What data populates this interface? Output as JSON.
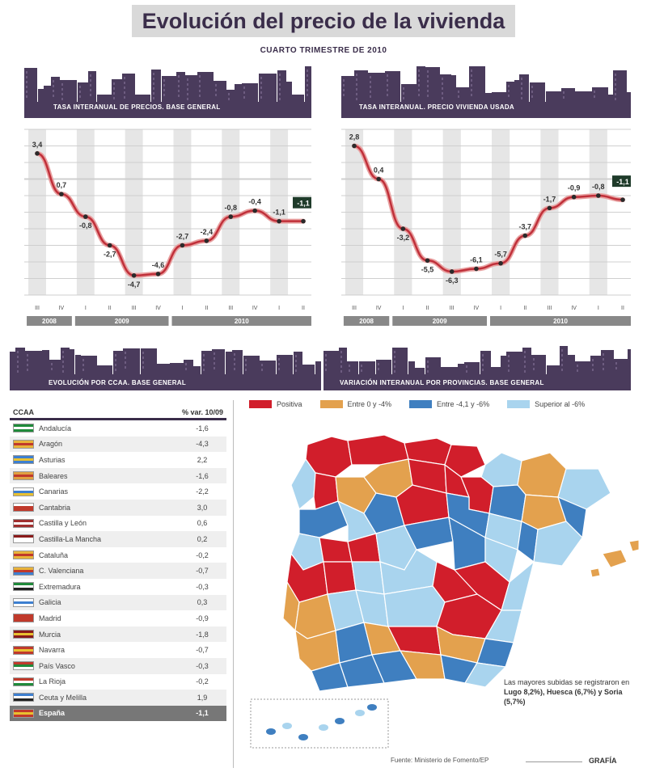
{
  "header": {
    "title": "Evolución del precio de la vivienda",
    "subtitle": "CUARTO TRIMESTRE DE 2010"
  },
  "colors": {
    "purple": "#4a3b5c",
    "red": "#d11e2b",
    "orange": "#e3a14e",
    "blue": "#3f7fc0",
    "light_blue": "#a9d4ee",
    "dark_green": "#1f3b2a"
  },
  "banners": {
    "chart1": "TASA INTERANUAL DE PRECIOS. BASE GENERAL",
    "chart2": "TASA INTERANUAL. PRECIO VIVIENDA USADA",
    "table": "EVOLUCIÓN POR CCAA. BASE GENERAL",
    "map": "VARIACIÓN INTERANUAL POR PROVINCIAS. BASE GENERAL"
  },
  "chart_data": [
    {
      "type": "line",
      "title": "TASA INTERANUAL DE PRECIOS. BASE GENERAL",
      "x": [
        "III",
        "IV",
        "I",
        "II",
        "III",
        "IV",
        "I",
        "II",
        "III",
        "IV",
        "I",
        "II"
      ],
      "years": [
        "2008",
        "2009",
        "2010"
      ],
      "values": [
        3.4,
        0.7,
        -0.8,
        -2.7,
        -4.7,
        -4.6,
        -2.7,
        -2.4,
        -0.8,
        -0.4,
        -1.1,
        -1.1
      ],
      "labels": [
        "3,4",
        "0,7",
        "-0,8",
        "-2,7",
        "-4,7",
        "-4,6",
        "-2,7",
        "-2,4",
        "-0,8",
        "-0,4",
        "-1,1",
        "-1,1"
      ],
      "highlight_label": "-1,1",
      "ylim": [
        -6,
        5
      ]
    },
    {
      "type": "line",
      "title": "TASA INTERANUAL. PRECIO VIVIENDA USADA",
      "x": [
        "III",
        "IV",
        "I",
        "II",
        "III",
        "IV",
        "I",
        "II",
        "III",
        "IV",
        "I",
        "II"
      ],
      "years": [
        "2008",
        "2009",
        "2010"
      ],
      "values": [
        2.8,
        0.4,
        -3.2,
        -5.5,
        -6.3,
        -6.1,
        -5.7,
        -3.7,
        -1.7,
        -0.9,
        -0.8,
        -1.1
      ],
      "labels": [
        "2,8",
        "0,4",
        "-3,2",
        "-5,5",
        "-6,3",
        "-6,1",
        "-5,7",
        "-3,7",
        "-1,7",
        "-0,9",
        "-0,8",
        "-1,1"
      ],
      "highlight_label": "-1,1",
      "ylim": [
        -8,
        4
      ]
    }
  ],
  "table": {
    "col_name": "CCAA",
    "col_value": "% var. 10/09",
    "rows": [
      {
        "name": "Andalucía",
        "value": "-1,6",
        "flag": [
          "#1f8a3a",
          "#ffffff",
          "#1f8a3a"
        ]
      },
      {
        "name": "Aragón",
        "value": "-4,3",
        "flag": [
          "#e8b33a",
          "#c0392b",
          "#e8b33a"
        ]
      },
      {
        "name": "Asturias",
        "value": "2,2",
        "flag": [
          "#3d7fd0",
          "#e8c030",
          "#3d7fd0"
        ]
      },
      {
        "name": "Baleares",
        "value": "-1,6",
        "flag": [
          "#e0a040",
          "#c0392b",
          "#e0a040"
        ]
      },
      {
        "name": "Canarias",
        "value": "-2,2",
        "flag": [
          "#ffffff",
          "#3d7fd0",
          "#e8c030"
        ]
      },
      {
        "name": "Cantabria",
        "value": "3,0",
        "flag": [
          "#ffffff",
          "#c0392b",
          "#c0392b"
        ]
      },
      {
        "name": "Castilla y León",
        "value": "0,6",
        "flag": [
          "#a03030",
          "#ffffff",
          "#a03030"
        ]
      },
      {
        "name": "Castilla-La Mancha",
        "value": "0,2",
        "flag": [
          "#8a1a1a",
          "#ffffff",
          "#ffffff"
        ]
      },
      {
        "name": "Cataluña",
        "value": "-0,2",
        "flag": [
          "#e8b33a",
          "#c0392b",
          "#e8b33a"
        ]
      },
      {
        "name": "C. Valenciana",
        "value": "-0,7",
        "flag": [
          "#e8b33a",
          "#c0392b",
          "#3d7fd0"
        ]
      },
      {
        "name": "Extremadura",
        "value": "-0,3",
        "flag": [
          "#1f8a3a",
          "#ffffff",
          "#222222"
        ]
      },
      {
        "name": "Galicia",
        "value": "0,3",
        "flag": [
          "#ffffff",
          "#3d7fd0",
          "#ffffff"
        ]
      },
      {
        "name": "Madrid",
        "value": "-0,9",
        "flag": [
          "#c0392b",
          "#c0392b",
          "#c0392b"
        ]
      },
      {
        "name": "Murcia",
        "value": "-1,8",
        "flag": [
          "#8a1a1a",
          "#e8c030",
          "#8a1a1a"
        ]
      },
      {
        "name": "Navarra",
        "value": "-0,7",
        "flag": [
          "#c0392b",
          "#e8c030",
          "#c0392b"
        ]
      },
      {
        "name": "País Vasco",
        "value": "-0,3",
        "flag": [
          "#c0392b",
          "#1f8a3a",
          "#ffffff"
        ]
      },
      {
        "name": "La Rioja",
        "value": "-0,2",
        "flag": [
          "#c0392b",
          "#ffffff",
          "#1f8a3a"
        ]
      },
      {
        "name": "Ceuta y Melilla",
        "value": "1,9",
        "flag": [
          "#3d7fd0",
          "#ffffff",
          "#222222"
        ]
      },
      {
        "name": "España",
        "value": "-1,1",
        "flag": [
          "#c0392b",
          "#e8c030",
          "#c0392b"
        ],
        "total": true
      }
    ]
  },
  "legend": [
    {
      "label": "Positiva",
      "color": "#d11e2b"
    },
    {
      "label": "Entre 0 y -4%",
      "color": "#e3a14e"
    },
    {
      "label": "Entre -4,1 y -6%",
      "color": "#3f7fc0"
    },
    {
      "label": "Superior al -6%",
      "color": "#a9d4ee"
    }
  ],
  "note": {
    "text": "Las mayores subidas se registraron en",
    "bold": "Lugo 8,2%), Huesca (6,7%) y Soria (5,7%)"
  },
  "source": "Fuente: Ministerio de Fomento/EP",
  "brand": "GRAFÍA"
}
